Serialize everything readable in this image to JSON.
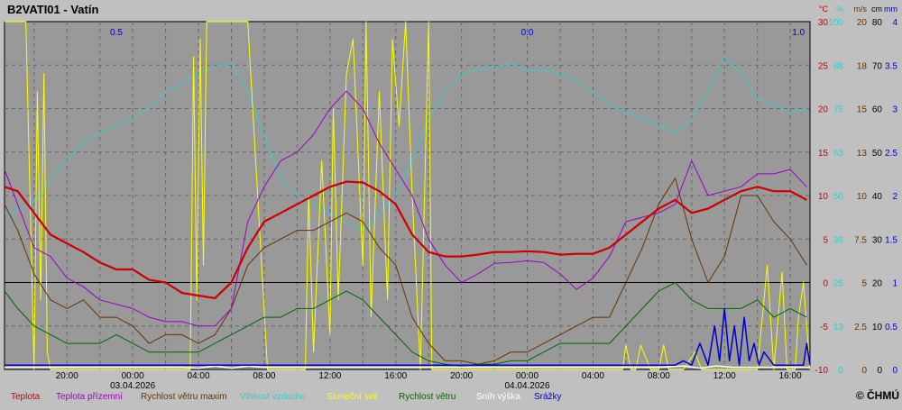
{
  "title": "B2VATI01 - Vatín",
  "copyright": "© ČHMÚ",
  "chart_data": {
    "type": "line",
    "x_ticks": [
      {
        "t": -28,
        "time": "20:00",
        "date": ""
      },
      {
        "t": -24,
        "time": "00:00",
        "date": "03.04.2026"
      },
      {
        "t": -20,
        "time": "04:00",
        "date": ""
      },
      {
        "t": -16,
        "time": "08:00",
        "date": ""
      },
      {
        "t": -12,
        "time": "12:00",
        "date": ""
      },
      {
        "t": -8,
        "time": "16:00",
        "date": ""
      },
      {
        "t": -4,
        "time": "20:00",
        "date": ""
      },
      {
        "t": 0,
        "time": "00:00",
        "date": "04.04.2026"
      },
      {
        "t": 4,
        "time": "04:00",
        "date": ""
      },
      {
        "t": 8,
        "time": "08:00",
        "date": ""
      },
      {
        "t": 12,
        "time": "12:00",
        "date": ""
      },
      {
        "t": 16,
        "time": "16:00",
        "date": ""
      }
    ],
    "xlim": [
      -31.8,
      17.2
    ],
    "y_axes": [
      {
        "unit": "°C",
        "color": "#cc0000",
        "ticks": [
          "30",
          "25",
          "20",
          "15",
          "10",
          "5",
          "0",
          "-5",
          "-10"
        ]
      },
      {
        "unit": "%",
        "color": "#33cccc",
        "ticks": [
          "100",
          "88",
          "75",
          "63",
          "50",
          "38",
          "25",
          "13",
          "0"
        ]
      },
      {
        "unit": "m/s",
        "color": "#663300",
        "ticks": [
          "20",
          "18",
          "15",
          "13",
          "10",
          "7.5",
          "5",
          "2.5",
          "0"
        ]
      },
      {
        "unit": "cm",
        "color": "#000000",
        "ticks": [
          "80",
          "70",
          "60",
          "50",
          "40",
          "30",
          "20",
          "10",
          "0"
        ]
      },
      {
        "unit": "mm",
        "color": "#0000cc",
        "ticks": [
          "4",
          "3.5",
          "3",
          "2.5",
          "2",
          "1.5",
          "1",
          "0.5",
          "0"
        ]
      }
    ],
    "ylim_temperature": [
      -10,
      30
    ],
    "daily_precip_totals": [
      {
        "label": "0.5",
        "t": -25
      },
      {
        "label": "0.0",
        "t": 0
      },
      {
        "label": "1.0",
        "t": 16.5
      }
    ],
    "series": [
      {
        "name": "Teplota",
        "color": "#cc0000",
        "width": 2.2,
        "unit": "°C",
        "x": [
          -31.8,
          -31,
          -30,
          -29,
          -28,
          -27,
          -26,
          -25,
          -24,
          -23,
          -22,
          -21,
          -20,
          -19,
          -18,
          -17,
          -16,
          -15,
          -14,
          -13,
          -12,
          -11,
          -10,
          -9,
          -8,
          -7,
          -6,
          -5,
          -4,
          -3,
          -2,
          -1,
          0,
          1,
          2,
          3,
          4,
          5,
          6,
          7,
          8,
          9,
          10,
          11,
          12,
          13,
          14,
          15,
          16,
          17
        ],
        "y": [
          11,
          10.5,
          8,
          5.5,
          4.5,
          3.5,
          2.3,
          1.5,
          1.5,
          0.3,
          0,
          -1.2,
          -1.5,
          -1.8,
          0,
          4,
          7,
          8,
          9,
          10,
          11,
          11.6,
          11.5,
          10.5,
          9,
          5.5,
          3.5,
          3,
          3,
          3.2,
          3.5,
          3.5,
          3.6,
          3.5,
          3.2,
          3.3,
          3.3,
          4,
          5.5,
          7,
          8.5,
          9.5,
          8,
          8.5,
          9.5,
          10.5,
          11,
          10.5,
          10.5,
          9.5
        ]
      },
      {
        "name": "Teplota přízemní",
        "color": "#9900cc",
        "width": 1,
        "unit": "°C",
        "x": [
          -31.8,
          -31,
          -30,
          -29,
          -28,
          -27,
          -26,
          -25,
          -24,
          -23,
          -22,
          -21,
          -20,
          -19,
          -18,
          -17,
          -16,
          -15,
          -14,
          -13,
          -12,
          -11,
          -10,
          -9,
          -8,
          -7,
          -6,
          -5,
          -4,
          -3,
          -2,
          -1,
          0,
          1,
          2,
          3,
          4,
          5,
          6,
          7,
          8,
          9,
          10,
          11,
          12,
          13,
          14,
          15,
          16,
          17
        ],
        "y": [
          13,
          9,
          4,
          3,
          0.5,
          -0.5,
          -2,
          -2.5,
          -3,
          -4,
          -4.5,
          -4.5,
          -5,
          -5,
          -3,
          7,
          11,
          14,
          15,
          17,
          20,
          22,
          20,
          16,
          13,
          10,
          5,
          2,
          0,
          1,
          2.2,
          2.3,
          2.5,
          2.3,
          1,
          -0.8,
          0.5,
          3,
          7,
          7.5,
          8,
          9,
          14,
          10,
          10.5,
          11,
          12.5,
          12.5,
          13,
          11
        ]
      },
      {
        "name": "Rychlost větru maxim",
        "color": "#663300",
        "width": 1,
        "unit": "m/s",
        "x": [
          -31.8,
          -31,
          -30,
          -29,
          -28,
          -27,
          -26,
          -25,
          -24,
          -23,
          -22,
          -21,
          -20,
          -19,
          -18,
          -17,
          -16,
          -15,
          -14,
          -13,
          -12,
          -11,
          -10,
          -9,
          -8,
          -7,
          -6,
          -5,
          -4,
          -3,
          -2,
          -1,
          0,
          1,
          2,
          3,
          4,
          5,
          6,
          7,
          8,
          9,
          10,
          11,
          12,
          13,
          14,
          15,
          16,
          17
        ],
        "y": [
          9.5,
          8,
          5.5,
          4,
          3.5,
          4,
          3,
          3,
          2.5,
          1.5,
          2,
          2,
          1.5,
          2,
          3.5,
          6,
          7,
          7.5,
          8,
          8,
          8.5,
          9,
          8.5,
          7,
          6,
          3,
          1.5,
          0.5,
          0.5,
          0.3,
          0.5,
          1,
          1,
          1.5,
          2,
          2.5,
          3,
          3,
          5,
          7,
          9.5,
          11,
          7.5,
          5,
          6.5,
          10,
          10,
          8.5,
          7.5,
          6
        ]
      },
      {
        "name": "Vlhkost vzduchu",
        "color": "#33cccc",
        "width": 1,
        "unit": "%",
        "x": [
          -31.8,
          -31,
          -30,
          -29,
          -28,
          -27,
          -26,
          -25,
          -24,
          -23,
          -22,
          -21,
          -20,
          -19,
          -18,
          -17,
          -16,
          -15,
          -14,
          -13,
          -12,
          -11,
          -10,
          -9,
          -8,
          -7,
          -6,
          -5,
          -4,
          -3,
          -2,
          -1,
          0,
          1,
          2,
          3,
          4,
          5,
          6,
          7,
          8,
          9,
          10,
          11,
          12,
          13,
          14,
          15,
          16,
          17
        ],
        "y": [
          45,
          46,
          48,
          55,
          60,
          65,
          68,
          70,
          72,
          75,
          80,
          82,
          85,
          87,
          88,
          80,
          67,
          55,
          50,
          47,
          45,
          42,
          40,
          45,
          50,
          60,
          72,
          80,
          85,
          86,
          87,
          88,
          86,
          86,
          85,
          83,
          80,
          76,
          74,
          72,
          70,
          68,
          72,
          80,
          90,
          85,
          78,
          76,
          74,
          75
        ]
      },
      {
        "name": "Sluneční svit",
        "color": "#ffff00",
        "width": 1,
        "unit": "%",
        "x": [
          -31.8,
          -30.5,
          -30,
          -29.8,
          -29.6,
          -29.4,
          -29.2,
          -29,
          -21,
          -20.5,
          -20.3,
          -20.1,
          -19.9,
          -19.7,
          -19.5,
          -19,
          -17.2,
          -17,
          -15.8,
          -14.5,
          -13.5,
          -13.3,
          -13,
          -12.5,
          -12,
          -11.8,
          -11.5,
          -11,
          -10.6,
          -10,
          -9.8,
          -9.5,
          -9,
          -8.5,
          -8.2,
          -7.8,
          -7.4,
          -7,
          -6.5,
          -6,
          -5.8,
          5.8,
          6,
          6.3,
          6.6,
          6.9,
          7.5,
          8,
          8.3,
          8.6,
          9,
          9.5,
          10.2,
          10.6,
          14,
          14.6,
          15,
          15.5,
          15.8,
          16,
          16.3,
          16.5,
          16.8,
          17.2
        ],
        "y": [
          100,
          100,
          0,
          80,
          20,
          85,
          5,
          0,
          0,
          0,
          90,
          20,
          95,
          30,
          100,
          100,
          100,
          100,
          0,
          0,
          0,
          50,
          5,
          60,
          10,
          75,
          20,
          85,
          95,
          30,
          100,
          15,
          80,
          20,
          95,
          70,
          100,
          50,
          0,
          100,
          0,
          0,
          7,
          0,
          0,
          7,
          0,
          0,
          7,
          0,
          0,
          0,
          5,
          0,
          0,
          30,
          0,
          28,
          0,
          0,
          0,
          15,
          25,
          0
        ]
      },
      {
        "name": "Rychlost větru",
        "color": "#006600",
        "width": 1,
        "unit": "m/s",
        "x": [
          -31.8,
          -31,
          -30,
          -29,
          -28,
          -27,
          -26,
          -25,
          -24,
          -23,
          -22,
          -21,
          -20,
          -19,
          -18,
          -17,
          -16,
          -15,
          -14,
          -13,
          -12,
          -11,
          -10,
          -9,
          -8,
          -7,
          -6,
          -5,
          -4,
          -3,
          -2,
          -1,
          0,
          1,
          2,
          3,
          4,
          5,
          6,
          7,
          8,
          9,
          10,
          11,
          12,
          13,
          14,
          15,
          16,
          17
        ],
        "y": [
          4.5,
          3.5,
          2.5,
          2,
          1.5,
          1.5,
          1.5,
          2,
          1.5,
          1,
          1,
          1,
          1,
          1.5,
          2,
          2.5,
          3,
          3,
          3.5,
          3.5,
          4,
          4.5,
          4,
          3,
          2,
          1,
          0.5,
          0.3,
          0.2,
          0.3,
          0.3,
          0.5,
          0.5,
          1,
          1.5,
          1.5,
          1.5,
          1.5,
          2.5,
          3.5,
          4.5,
          5,
          4,
          3.5,
          3.5,
          3.5,
          4,
          3,
          3.5,
          3
        ]
      },
      {
        "name": "Sníh výška",
        "color": "#ffffff",
        "width": 1.5,
        "unit": "cm",
        "x": [
          -31.8,
          -27,
          -21,
          -20,
          -19,
          -18,
          -17,
          -16,
          -12,
          -8,
          -4,
          0,
          4,
          8,
          9.5,
          10.5,
          11.5,
          12.5,
          17.2
        ],
        "y": [
          0.5,
          0.5,
          0.5,
          0.3,
          0.8,
          0.3,
          0.8,
          0.5,
          0.5,
          0.5,
          0.5,
          0.5,
          0.5,
          0.5,
          0.8,
          0.3,
          0.8,
          0.5,
          0.5
        ]
      },
      {
        "name": "Srážky",
        "color": "#0000cc",
        "width": 1.5,
        "unit": "mm",
        "x": [
          -31.8,
          9,
          9.5,
          10,
          10.5,
          11,
          11.4,
          11.7,
          12,
          12.3,
          12.6,
          12.9,
          13.2,
          13.5,
          13.8,
          14.1,
          14.4,
          15,
          16,
          16.8,
          17,
          17.2
        ],
        "y": [
          0.05,
          0.05,
          0.1,
          0.05,
          0.3,
          0.05,
          0.5,
          0.1,
          0.7,
          0.1,
          0.5,
          0.05,
          0.6,
          0.1,
          0.3,
          0.05,
          0.2,
          0.05,
          0.05,
          0.05,
          0.3,
          0.05
        ]
      }
    ]
  }
}
